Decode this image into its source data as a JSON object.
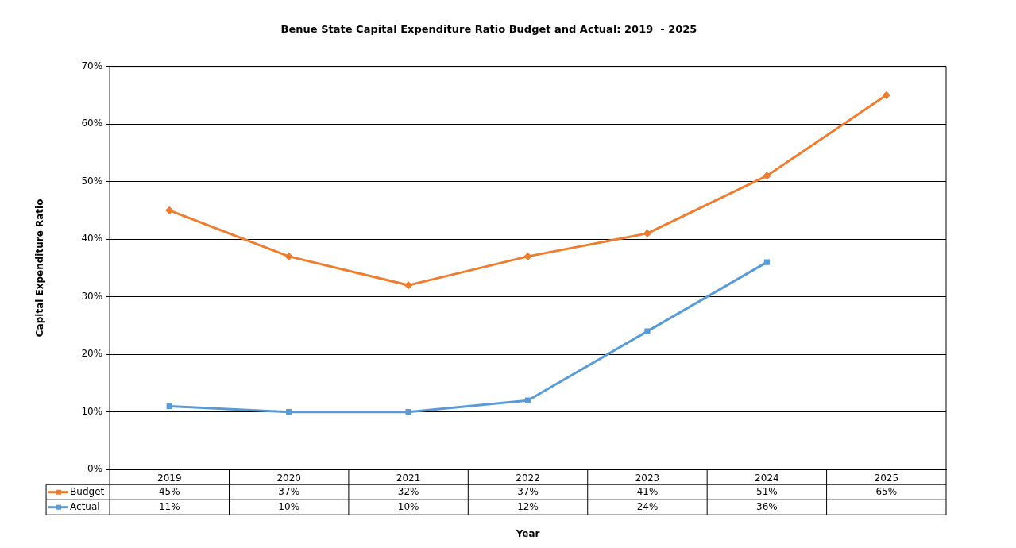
{
  "chart_data": {
    "type": "line",
    "title": "Benue State Capital Expenditure Ratio Budget and Actual: 2019  - 2025",
    "xlabel": "Year",
    "ylabel": "Capital Expenditure Ratio",
    "categories": [
      "2019",
      "2020",
      "2021",
      "2022",
      "2023",
      "2024",
      "2025"
    ],
    "series": [
      {
        "name": "Budget",
        "color": "#ed7d31",
        "marker": "diamond",
        "values": [
          45,
          37,
          32,
          37,
          41,
          51,
          65
        ],
        "value_labels": [
          "45%",
          "37%",
          "32%",
          "37%",
          "41%",
          "51%",
          "65%"
        ]
      },
      {
        "name": "Actual",
        "color": "#5b9bd5",
        "marker": "square",
        "values": [
          11,
          10,
          10,
          12,
          24,
          36,
          null
        ],
        "value_labels": [
          "11%",
          "10%",
          "10%",
          "12%",
          "24%",
          "36%",
          null
        ]
      }
    ],
    "ylim": [
      0,
      70
    ],
    "yticks": [
      {
        "value": 0,
        "label": "0%"
      },
      {
        "value": 10,
        "label": "10%"
      },
      {
        "value": 20,
        "label": "20%"
      },
      {
        "value": 30,
        "label": "30%"
      },
      {
        "value": 40,
        "label": "40%"
      },
      {
        "value": 50,
        "label": "50%"
      },
      {
        "value": 60,
        "label": "60%"
      },
      {
        "value": 70,
        "label": "70%"
      }
    ],
    "grid": "y",
    "legend": "bottom"
  }
}
